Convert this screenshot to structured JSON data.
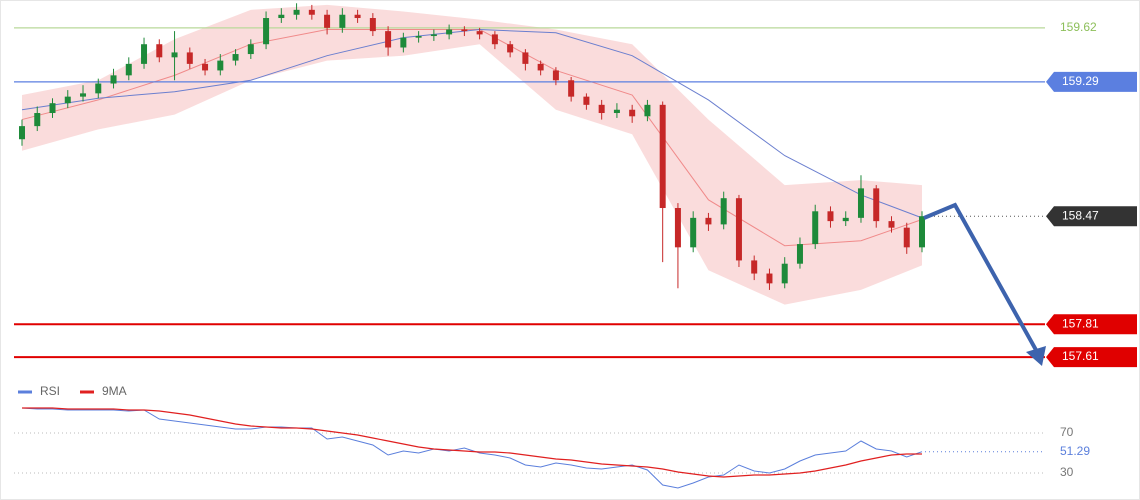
{
  "chart_data": [
    {
      "type": "candlestick",
      "ylim": [
        157.47,
        159.79
      ],
      "up_color": "#1e8a3a",
      "down_color": "#c62828",
      "open": [
        158.94,
        159.02,
        159.1,
        159.16,
        159.2,
        159.22,
        159.28,
        159.33,
        159.4,
        159.52,
        159.44,
        159.47,
        159.4,
        159.36,
        159.42,
        159.46,
        159.52,
        159.68,
        159.7,
        159.73,
        159.7,
        159.62,
        159.7,
        159.68,
        159.6,
        159.5,
        159.56,
        159.57,
        159.58,
        159.61,
        159.6,
        159.58,
        159.52,
        159.47,
        159.4,
        159.36,
        159.3,
        159.2,
        159.15,
        159.1,
        159.12,
        159.08,
        159.15,
        158.52,
        158.28,
        158.46,
        158.42,
        158.58,
        158.2,
        158.12,
        158.06,
        158.18,
        158.3,
        158.5,
        158.44,
        158.46,
        158.64,
        158.44,
        158.4,
        158.28
      ],
      "high": [
        159.06,
        159.14,
        159.19,
        159.24,
        159.27,
        159.31,
        159.37,
        159.44,
        159.56,
        159.55,
        159.6,
        159.5,
        159.43,
        159.46,
        159.49,
        159.55,
        159.72,
        159.74,
        159.77,
        159.76,
        159.73,
        159.74,
        159.73,
        159.71,
        159.63,
        159.59,
        159.6,
        159.61,
        159.64,
        159.63,
        159.62,
        159.6,
        159.54,
        159.49,
        159.42,
        159.38,
        159.32,
        159.22,
        159.18,
        159.16,
        159.15,
        159.18,
        159.17,
        158.55,
        158.5,
        158.49,
        158.62,
        158.6,
        158.23,
        158.15,
        158.22,
        158.34,
        158.54,
        158.53,
        158.5,
        158.72,
        158.66,
        158.47,
        158.43,
        158.5
      ],
      "low": [
        158.9,
        158.99,
        159.07,
        159.13,
        159.17,
        159.19,
        159.25,
        159.3,
        159.37,
        159.41,
        159.3,
        159.37,
        159.33,
        159.33,
        159.39,
        159.43,
        159.49,
        159.65,
        159.67,
        159.67,
        159.58,
        159.59,
        159.65,
        159.57,
        159.45,
        159.47,
        159.53,
        159.54,
        159.55,
        159.57,
        159.55,
        159.49,
        159.44,
        159.36,
        159.33,
        159.27,
        159.17,
        159.12,
        159.06,
        159.07,
        159.04,
        159.05,
        158.19,
        158.03,
        158.25,
        158.38,
        158.39,
        158.16,
        158.08,
        158.02,
        158.03,
        158.15,
        158.27,
        158.4,
        158.41,
        158.43,
        158.4,
        158.37,
        158.24,
        158.25
      ],
      "close": [
        159.02,
        159.1,
        159.16,
        159.2,
        159.22,
        159.28,
        159.33,
        159.4,
        159.52,
        159.44,
        159.47,
        159.4,
        159.36,
        159.42,
        159.46,
        159.52,
        159.68,
        159.7,
        159.73,
        159.7,
        159.62,
        159.7,
        159.68,
        159.6,
        159.5,
        159.56,
        159.57,
        159.58,
        159.61,
        159.6,
        159.58,
        159.52,
        159.47,
        159.4,
        159.36,
        159.3,
        159.2,
        159.15,
        159.1,
        159.12,
        159.08,
        159.15,
        158.52,
        158.28,
        158.46,
        158.42,
        158.58,
        158.2,
        158.12,
        158.06,
        158.18,
        158.3,
        158.5,
        158.44,
        158.46,
        158.64,
        158.44,
        158.4,
        158.28,
        158.47
      ],
      "band": {
        "color": "#f7c5c5",
        "x": [
          0,
          5,
          10,
          15,
          20,
          25,
          30,
          35,
          40,
          45,
          50,
          55,
          59
        ],
        "upper": [
          159.21,
          159.3,
          159.55,
          159.73,
          159.76,
          159.72,
          159.67,
          159.61,
          159.52,
          159.06,
          158.66,
          158.69,
          158.66
        ],
        "lower": [
          158.87,
          159.0,
          159.09,
          159.3,
          159.42,
          159.45,
          159.52,
          159.12,
          158.97,
          158.14,
          157.93,
          158.02,
          158.17
        ]
      },
      "lines": [
        {
          "color": "#f08a8a",
          "x": [
            0,
            5,
            10,
            15,
            20,
            25,
            30,
            35,
            40,
            45,
            50,
            55,
            59
          ],
          "values": [
            159.06,
            159.18,
            159.33,
            159.52,
            159.61,
            159.61,
            159.61,
            159.36,
            159.21,
            158.57,
            158.29,
            158.32,
            158.45
          ]
        },
        {
          "color": "#6b7fcf",
          "x": [
            0,
            5,
            10,
            15,
            20,
            25,
            30,
            35,
            40,
            45,
            50,
            55,
            59
          ],
          "values": [
            159.12,
            159.19,
            159.23,
            159.3,
            159.45,
            159.56,
            159.61,
            159.59,
            159.45,
            159.18,
            158.84,
            158.6,
            158.46
          ]
        }
      ],
      "levels": [
        {
          "value": 159.62,
          "color": "#b9d99a",
          "boxed": false
        },
        {
          "value": 159.29,
          "color": "#5b7fe0",
          "boxed": true
        },
        {
          "value": 157.81,
          "color": "#e00000",
          "boxed": true
        },
        {
          "value": 157.61,
          "color": "#e00000",
          "boxed": true
        }
      ],
      "last_color": "#333333"
    },
    {
      "type": "line",
      "ylim": [
        3,
        103
      ],
      "yticks": [
        70,
        30
      ],
      "grid": true,
      "series": [
        {
          "name": "RSI",
          "color": "#5b7fdc",
          "values": [
            95,
            94,
            94,
            93,
            93,
            93,
            93,
            92,
            93,
            84,
            82,
            80,
            78,
            76,
            74,
            74,
            76,
            76,
            75,
            75,
            64,
            66,
            62,
            58,
            48,
            52,
            50,
            54,
            52,
            55,
            50,
            48,
            45,
            38,
            36,
            40,
            38,
            35,
            34,
            36,
            38,
            33,
            18,
            15,
            20,
            26,
            28,
            38,
            32,
            30,
            34,
            42,
            48,
            50,
            52,
            62,
            54,
            52,
            46,
            51.29
          ]
        },
        {
          "name": "9MA",
          "color": "#e02020",
          "values": [
            95,
            95,
            95,
            94,
            94,
            94,
            94,
            93,
            93,
            92,
            90,
            88,
            85,
            82,
            79,
            77,
            76,
            75,
            75,
            74,
            72,
            70,
            68,
            65,
            62,
            59,
            56,
            54,
            53,
            52,
            51,
            51,
            50,
            48,
            46,
            44,
            43,
            41,
            39,
            38,
            37,
            36,
            34,
            31,
            29,
            27,
            26,
            27,
            28,
            28,
            29,
            30,
            32,
            35,
            38,
            42,
            45,
            48,
            49,
            49
          ]
        }
      ]
    }
  ]
}
